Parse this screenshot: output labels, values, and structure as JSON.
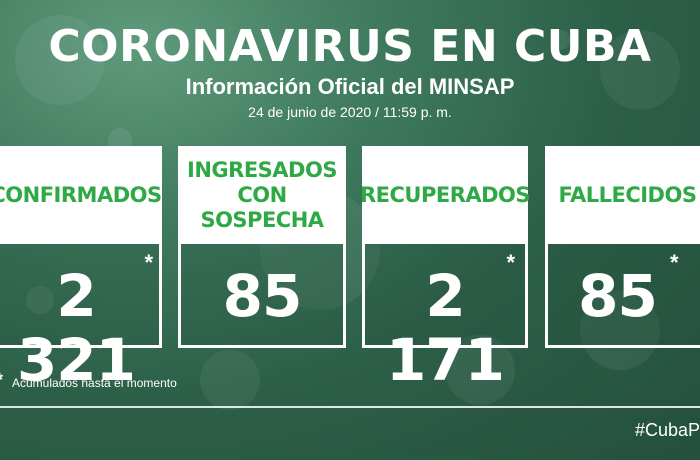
{
  "header": {
    "title": "CORONAVIRUS EN CUBA",
    "subtitle": "Información Oficial del MINSAP",
    "date": "24 de junio de 2020 / 11:59 p. m."
  },
  "cards": [
    {
      "label": "CONFIRMADOS",
      "value": "2 321",
      "asterisk": "*"
    },
    {
      "label_line1": "INGRESADOS",
      "label_line2": "CON SOSPECHA",
      "value": "85"
    },
    {
      "label": "RECUPERADOS",
      "value": "2 171",
      "asterisk": "*"
    },
    {
      "label": "FALLECIDOS",
      "value": "85",
      "asterisk": "*"
    }
  ],
  "footnote": {
    "marker": "*",
    "text": "Acumulados hasta el momento"
  },
  "hashtag": "#CubaP",
  "colors": {
    "accent_green": "#2fa846",
    "background": "#2c5f48"
  }
}
